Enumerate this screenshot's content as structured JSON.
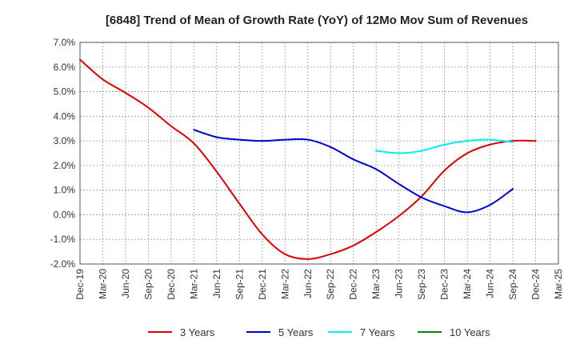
{
  "chart_data": {
    "type": "line",
    "title": "[6848]  Trend of Mean of Growth Rate (YoY) of 12Mo Mov Sum of Revenues",
    "xlabel": "",
    "ylabel": "",
    "ylim": [
      -2.0,
      7.0
    ],
    "yticks": [
      7.0,
      6.0,
      5.0,
      4.0,
      3.0,
      2.0,
      1.0,
      0.0,
      -1.0,
      -2.0
    ],
    "ytick_labels": [
      "7.0%",
      "6.0%",
      "5.0%",
      "4.0%",
      "3.0%",
      "2.0%",
      "1.0%",
      "0.0%",
      "-1.0%",
      "-2.0%"
    ],
    "x_categories": [
      "Dec-19",
      "Mar-20",
      "Jun-20",
      "Sep-20",
      "Dec-20",
      "Mar-21",
      "Jun-21",
      "Sep-21",
      "Dec-21",
      "Mar-22",
      "Jun-22",
      "Sep-22",
      "Dec-22",
      "Mar-23",
      "Jun-23",
      "Sep-23",
      "Dec-23",
      "Mar-24",
      "Jun-24",
      "Sep-24",
      "Dec-24",
      "Mar-25"
    ],
    "grid": true,
    "legend_position": "bottom",
    "series": [
      {
        "name": "3 Years",
        "color": "#dd0000",
        "start_index": 0,
        "values": [
          6.3,
          5.5,
          4.95,
          4.35,
          3.6,
          2.9,
          1.75,
          0.45,
          -0.8,
          -1.6,
          -1.8,
          -1.6,
          -1.25,
          -0.7,
          -0.05,
          0.75,
          1.8,
          2.5,
          2.85,
          3.0,
          3.0
        ]
      },
      {
        "name": "5 Years",
        "color": "#0000cc",
        "start_index": 5,
        "values": [
          3.45,
          3.15,
          3.05,
          3.0,
          3.05,
          3.05,
          2.75,
          2.25,
          1.85,
          1.25,
          0.7,
          0.35,
          0.1,
          0.4,
          1.05
        ]
      },
      {
        "name": "7 Years",
        "color": "#00eeee",
        "start_index": 13,
        "values": [
          2.6,
          2.5,
          2.6,
          2.85,
          3.0,
          3.05,
          2.95
        ]
      },
      {
        "name": "10 Years",
        "color": "#008800",
        "start_index": 0,
        "values": []
      }
    ]
  }
}
